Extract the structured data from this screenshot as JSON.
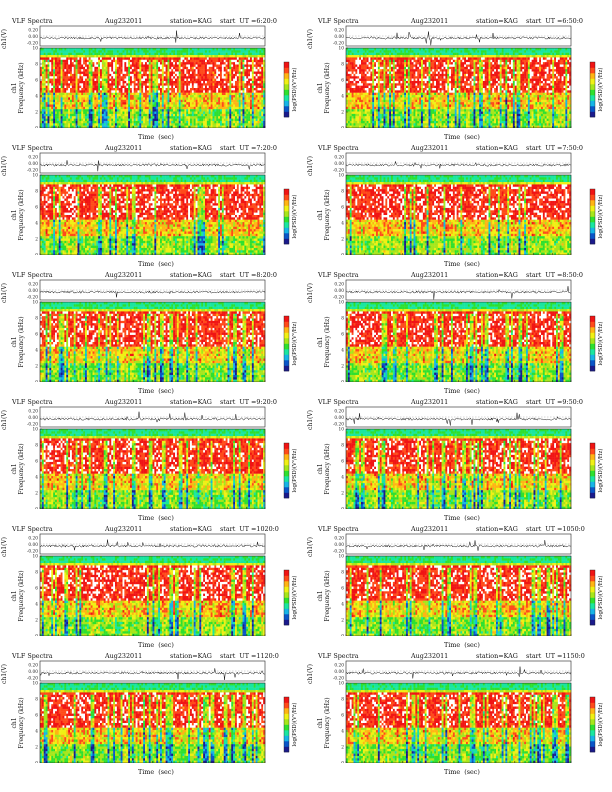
{
  "figure": {
    "panel_title": "VLF Spectra",
    "date": "Aug232011",
    "station": "station=KAG",
    "start_prefix": "start  UT =",
    "top_axis_label": "ch1(V)",
    "y_axis_label_ch": "ch1",
    "y_axis_label": "Frequency  (kHz)",
    "x_axis_label": "Time  (sec)",
    "colorbar_label": "log(PSD)(V²/Hz)",
    "amp_ticks": [
      "0.20",
      "0.00",
      "-0.20"
    ],
    "freq_ticks": [
      "0",
      "2",
      "4",
      "6",
      "8",
      "10"
    ],
    "time_ticks": [
      "0",
      "10",
      "20",
      "30",
      "40",
      "50",
      "60",
      "70",
      "80",
      "90",
      "100",
      "110",
      "120"
    ]
  },
  "chart_data": [
    {
      "type": "heatmap",
      "panel": "6:20:0",
      "start_ut": "6:20:0",
      "xlim": [
        0,
        120
      ],
      "ylim": [
        0,
        10
      ],
      "amp_ylim": [
        -0.2,
        0.2
      ],
      "colormap": [
        "#1a1a8c",
        "#0a55c8",
        "#16b4e6",
        "#19e6a0",
        "#2ee02e",
        "#a6e61a",
        "#f0f014",
        "#ffb414",
        "#ff4a1a",
        "#f01414",
        "#ffffff"
      ]
    },
    {
      "type": "heatmap",
      "panel": "6:50:0",
      "start_ut": "6:50:0",
      "xlim": [
        0,
        120
      ],
      "ylim": [
        0,
        10
      ],
      "amp_ylim": [
        -0.2,
        0.2
      ]
    },
    {
      "type": "heatmap",
      "panel": "7:20:0",
      "start_ut": "7:20:0",
      "xlim": [
        0,
        120
      ],
      "ylim": [
        0,
        10
      ],
      "amp_ylim": [
        -0.2,
        0.2
      ]
    },
    {
      "type": "heatmap",
      "panel": "7:50:0",
      "start_ut": "7:50:0",
      "xlim": [
        0,
        120
      ],
      "ylim": [
        0,
        10
      ],
      "amp_ylim": [
        -0.2,
        0.2
      ]
    },
    {
      "type": "heatmap",
      "panel": "8:20:0",
      "start_ut": "8:20:0",
      "xlim": [
        0,
        120
      ],
      "ylim": [
        0,
        10
      ],
      "amp_ylim": [
        -0.2,
        0.2
      ]
    },
    {
      "type": "heatmap",
      "panel": "8:50:0",
      "start_ut": "8:50:0",
      "xlim": [
        0,
        120
      ],
      "ylim": [
        0,
        10
      ],
      "amp_ylim": [
        -0.2,
        0.2
      ]
    },
    {
      "type": "heatmap",
      "panel": "9:20:0",
      "start_ut": "9:20:0",
      "xlim": [
        0,
        120
      ],
      "ylim": [
        0,
        10
      ],
      "amp_ylim": [
        -0.2,
        0.2
      ]
    },
    {
      "type": "heatmap",
      "panel": "9:50:0",
      "start_ut": "9:50:0",
      "xlim": [
        0,
        120
      ],
      "ylim": [
        0,
        10
      ],
      "amp_ylim": [
        -0.2,
        0.2
      ]
    },
    {
      "type": "heatmap",
      "panel": "1020:0",
      "start_ut": "1020:0",
      "xlim": [
        0,
        120
      ],
      "ylim": [
        0,
        10
      ],
      "amp_ylim": [
        -0.2,
        0.2
      ]
    },
    {
      "type": "heatmap",
      "panel": "1050:0",
      "start_ut": "1050:0",
      "xlim": [
        0,
        120
      ],
      "ylim": [
        0,
        10
      ],
      "amp_ylim": [
        -0.2,
        0.2
      ]
    },
    {
      "type": "heatmap",
      "panel": "1120:0",
      "start_ut": "1120:0",
      "xlim": [
        0,
        120
      ],
      "ylim": [
        0,
        10
      ],
      "amp_ylim": [
        -0.2,
        0.2
      ]
    },
    {
      "type": "heatmap",
      "panel": "1150:0",
      "start_ut": "1150:0",
      "xlim": [
        0,
        120
      ],
      "ylim": [
        0,
        10
      ],
      "amp_ylim": [
        -0.2,
        0.2
      ]
    }
  ]
}
